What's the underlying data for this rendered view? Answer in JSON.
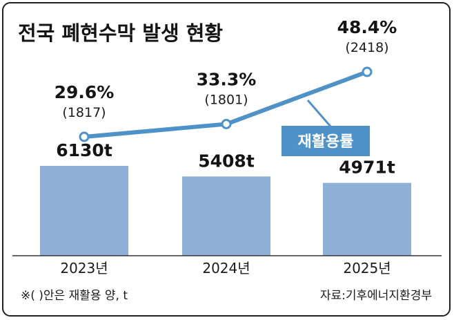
{
  "colors": {
    "bar": "#8fb1d8",
    "line": "#4f92c8",
    "marker_fill": "#ffffff",
    "legend_bg": "#4f92c8",
    "frame": "#1f1f1f",
    "text": "#141414"
  },
  "chart_data": {
    "type": "bar",
    "title": "전국 폐현수막 발생 현황",
    "categories": [
      "2023년",
      "2024년",
      "2025년"
    ],
    "series": [
      {
        "type": "bar",
        "values": [
          6130,
          5408,
          4971
        ],
        "labels": [
          "6130t",
          "5408t",
          "4971t"
        ]
      },
      {
        "type": "line",
        "name": "재활용률",
        "values": [
          29.6,
          33.3,
          48.4
        ],
        "labels": [
          "29.6%",
          "33.3%",
          "48.4%"
        ],
        "recycled_amounts": [
          1817,
          1801,
          2418
        ],
        "recycled_labels": [
          "(1817)",
          "(1801)",
          "(2418)"
        ]
      }
    ],
    "legend": {
      "label": "재활용률",
      "placement": "right, below line"
    },
    "grid": false,
    "footnote": "※(  )안은 재활용 양, t",
    "source": "자료:기후에너지환경부"
  }
}
